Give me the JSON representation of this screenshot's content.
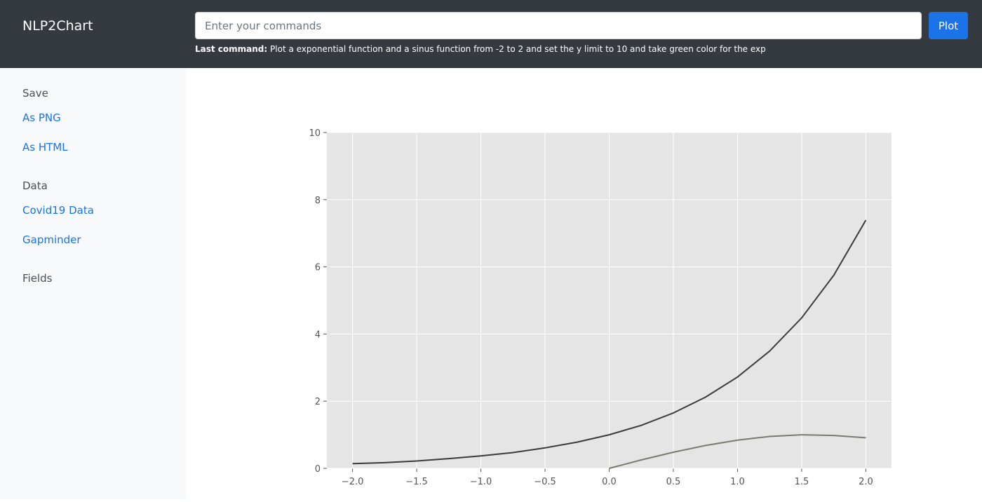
{
  "navbar": {
    "brand": "NLP2Chart",
    "command_placeholder": "Enter your commands",
    "command_value": "",
    "plot_label": "Plot",
    "last_command_label": "Last command:",
    "last_command_text": "Plot a exponential function and a sinus function from -2 to 2 and set the y limit to 10 and take green color for the exp"
  },
  "sidebar": {
    "sections": [
      {
        "heading": "Save",
        "links": [
          "As PNG",
          "As HTML"
        ]
      },
      {
        "heading": "Data",
        "links": [
          "Covid19 Data",
          "Gapminder"
        ]
      },
      {
        "heading": "Fields",
        "links": []
      }
    ]
  },
  "colors": {
    "navbar_bg": "#343a40",
    "accent": "#1a73e8",
    "plot_bg": "#e5e5e5",
    "grid": "#ffffff",
    "exp_line": "#3a3a3a",
    "sin_line": "#7a7a72"
  },
  "chart_data": {
    "type": "line",
    "title": "",
    "xlabel": "",
    "ylabel": "",
    "xlim": [
      -2.2,
      2.2
    ],
    "ylim": [
      0,
      10
    ],
    "xticks": [
      -2.0,
      -1.5,
      -1.0,
      -0.5,
      0.0,
      0.5,
      1.0,
      1.5,
      2.0
    ],
    "xtick_labels": [
      "−2.0",
      "−1.5",
      "−1.0",
      "−0.5",
      "0.0",
      "0.5",
      "1.0",
      "1.5",
      "2.0"
    ],
    "yticks": [
      0,
      2,
      4,
      6,
      8,
      10
    ],
    "ytick_labels": [
      "0",
      "2",
      "4",
      "6",
      "8",
      "10"
    ],
    "grid": true,
    "legend": "none",
    "series": [
      {
        "color": "#3a3a3a",
        "x": [
          -2.0,
          -1.75,
          -1.5,
          -1.25,
          -1.0,
          -0.75,
          -0.5,
          -0.25,
          0.0,
          0.25,
          0.5,
          0.75,
          1.0,
          1.25,
          1.5,
          1.75,
          2.0
        ],
        "y": [
          0.14,
          0.17,
          0.22,
          0.29,
          0.37,
          0.47,
          0.61,
          0.78,
          1.0,
          1.28,
          1.65,
          2.12,
          2.72,
          3.49,
          4.48,
          5.75,
          7.39
        ]
      },
      {
        "color": "#7a7a72",
        "x": [
          0.0,
          0.25,
          0.5,
          0.75,
          1.0,
          1.25,
          1.5,
          1.75,
          2.0
        ],
        "y": [
          0.0,
          0.25,
          0.48,
          0.68,
          0.84,
          0.95,
          1.0,
          0.98,
          0.91
        ]
      }
    ]
  }
}
